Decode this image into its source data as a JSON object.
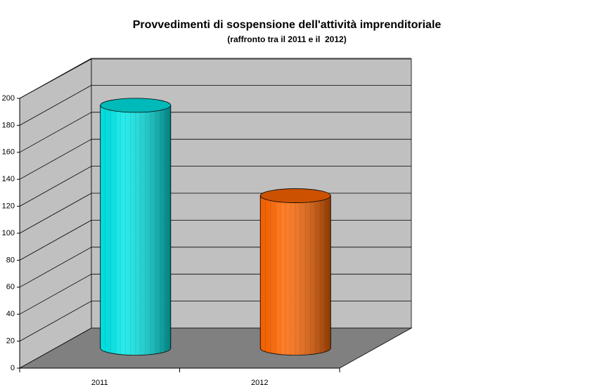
{
  "chart_data": {
    "type": "bar3d",
    "title": "Provvedimenti di sospensione dell'attività imprenditoriale",
    "subtitle": "(raffronto tra il 2011 e il  2012)",
    "categories": [
      "2011",
      "2012"
    ],
    "values": [
      180,
      113
    ],
    "colors": [
      "#00e8e8",
      "#ff6600"
    ],
    "ylim": [
      0,
      200
    ],
    "yticks": [
      0,
      20,
      40,
      60,
      80,
      100,
      120,
      140,
      160,
      180,
      200
    ],
    "grid": true
  }
}
